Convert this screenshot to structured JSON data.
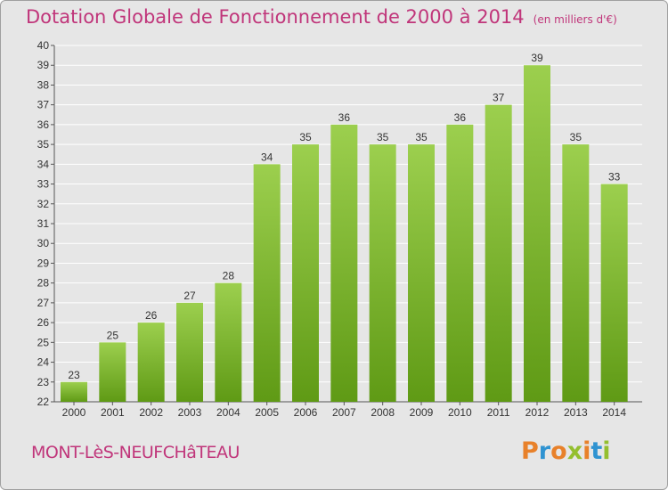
{
  "title": "Dotation Globale de Fonctionnement de 2000 à 2014",
  "unit": "(en milliers d'€)",
  "commune": "MONT-LèS-NEUFCHâTEAU",
  "brand": {
    "letters": [
      "P",
      "r",
      "o",
      "x",
      "i",
      "t",
      "i"
    ],
    "colors": [
      "#e8812a",
      "#2f93d1",
      "#e8812a",
      "#94bf2f",
      "#e8812a",
      "#2f93d1",
      "#94bf2f"
    ]
  },
  "colors": {
    "bar_top": "#9ccf4e",
    "bar_bottom": "#5f9a15",
    "title": "#c0357a",
    "grid": "#ffffff"
  },
  "chart_data": {
    "type": "bar",
    "categories": [
      "2000",
      "2001",
      "2002",
      "2003",
      "2004",
      "2005",
      "2006",
      "2007",
      "2008",
      "2009",
      "2010",
      "2011",
      "2012",
      "2013",
      "2014"
    ],
    "values": [
      23,
      25,
      26,
      27,
      28,
      34,
      35,
      36,
      35,
      35,
      36,
      37,
      39,
      35,
      33
    ],
    "ylim": [
      22,
      40
    ],
    "yticks": [
      22,
      23,
      24,
      25,
      26,
      27,
      28,
      29,
      30,
      31,
      32,
      33,
      34,
      35,
      36,
      37,
      38,
      39,
      40
    ],
    "grid": true,
    "data_labels": true
  }
}
